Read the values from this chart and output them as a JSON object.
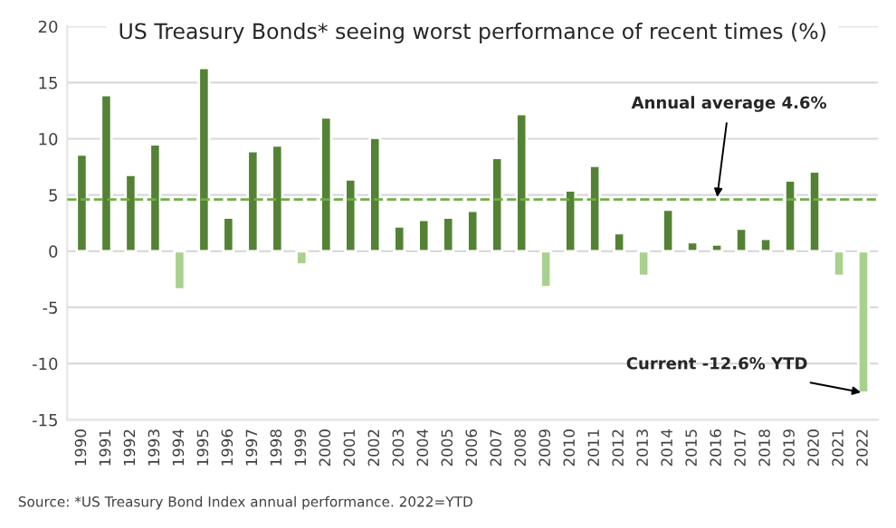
{
  "chart_data": {
    "type": "bar",
    "title": "US Treasury Bonds* seeing worst performance of recent times (%)",
    "categories": [
      "1990",
      "1991",
      "1992",
      "1993",
      "1994",
      "1995",
      "1996",
      "1997",
      "1998",
      "1999",
      "2000",
      "2001",
      "2002",
      "2003",
      "2004",
      "2005",
      "2006",
      "2007",
      "2008",
      "2009",
      "2010",
      "2011",
      "2012",
      "2013",
      "2014",
      "2015",
      "2016",
      "2017",
      "2018",
      "2019",
      "2020",
      "2021",
      "2022"
    ],
    "values": [
      8.6,
      13.9,
      6.8,
      9.5,
      -3.4,
      16.3,
      3.0,
      8.9,
      9.4,
      -1.2,
      11.9,
      6.4,
      10.1,
      2.2,
      2.8,
      3.0,
      3.6,
      8.3,
      12.2,
      -3.2,
      5.4,
      7.6,
      1.6,
      -2.2,
      3.7,
      0.8,
      0.6,
      2.0,
      1.1,
      6.3,
      7.1,
      -2.2,
      -12.6
    ],
    "colors": [
      "#548235",
      "#548235",
      "#548235",
      "#548235",
      "#a9d18e",
      "#548235",
      "#548235",
      "#548235",
      "#548235",
      "#a9d18e",
      "#548235",
      "#548235",
      "#548235",
      "#548235",
      "#548235",
      "#548235",
      "#548235",
      "#548235",
      "#548235",
      "#a9d18e",
      "#548235",
      "#548235",
      "#548235",
      "#a9d18e",
      "#548235",
      "#548235",
      "#548235",
      "#548235",
      "#548235",
      "#548235",
      "#548235",
      "#a9d18e",
      "#a9d18e"
    ],
    "ylim": [
      -15,
      20
    ],
    "yticks": [
      -15,
      -10,
      -5,
      0,
      5,
      10,
      15,
      20
    ],
    "grid": "y",
    "ref_lines": [
      {
        "axis": "y",
        "value": 4.6,
        "label": "Annual average 4.6%",
        "color": "#70ad47",
        "line_style": "dashed"
      }
    ],
    "annotations": [
      {
        "text": "Current -12.6% YTD",
        "x": "2022",
        "y": -12.6
      },
      "Source: *US Treasury Bond Index annual performance. 2022=YTD"
    ]
  }
}
